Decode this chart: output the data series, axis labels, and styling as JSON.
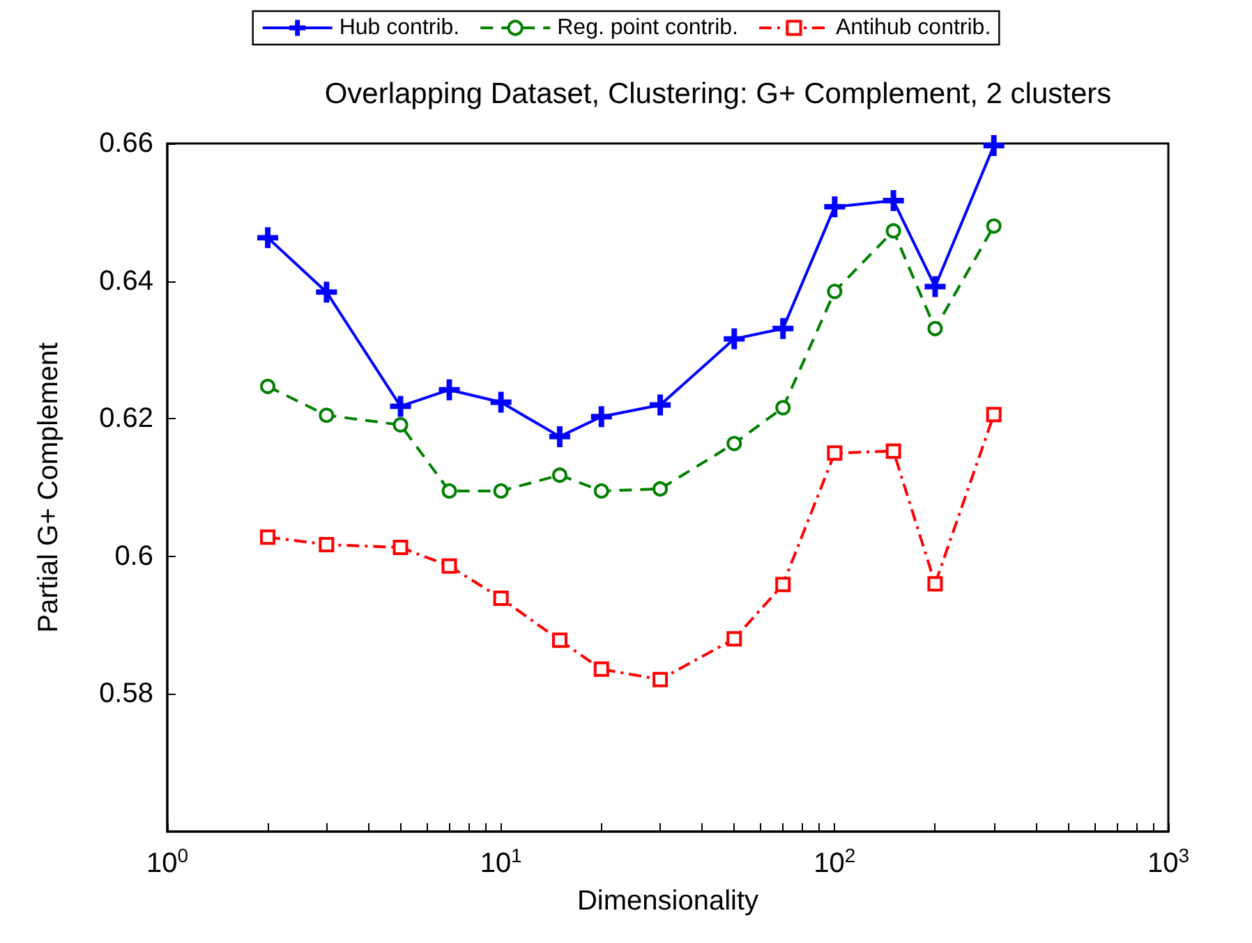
{
  "chart_data": {
    "type": "line",
    "title": "Overlapping Dataset, Clustering: G+ Complement, 2 clusters",
    "xlabel": "Dimensionality",
    "ylabel": "Partial G+ Complement",
    "x": [
      2,
      3,
      5,
      7,
      10,
      15,
      20,
      30,
      50,
      70,
      100,
      150,
      200,
      300
    ],
    "series": [
      {
        "name": "Hub contrib.",
        "color": "#0000ff",
        "marker": "cross",
        "line_style": "solid",
        "values": [
          0.6463,
          0.6384,
          0.6218,
          0.6242,
          0.6224,
          0.6174,
          0.6203,
          0.622,
          0.6316,
          0.6331,
          0.6508,
          0.6517,
          0.6392,
          0.6597
        ]
      },
      {
        "name": "Reg. point contrib.",
        "color": "#008000",
        "marker": "circle",
        "line_style": "dashed",
        "values": [
          0.6247,
          0.6205,
          0.6191,
          0.6095,
          0.6095,
          0.6118,
          0.6095,
          0.6098,
          0.6164,
          0.6216,
          0.6385,
          0.6473,
          0.6331,
          0.648
        ]
      },
      {
        "name": "Antihub contrib.",
        "color": "#ff0000",
        "marker": "square",
        "line_style": "dashdot",
        "values": [
          0.6028,
          0.6017,
          0.6013,
          0.5986,
          0.5939,
          0.5878,
          0.5836,
          0.5821,
          0.588,
          0.5959,
          0.615,
          0.6153,
          0.596,
          0.6206
        ]
      }
    ],
    "log": "x",
    "xlim": [
      1,
      1000
    ],
    "xticks": [
      {
        "value": 1,
        "label": "10$^{0}$"
      },
      {
        "value": 10,
        "label": "10$^{1}$"
      },
      {
        "value": 100,
        "label": "10$^{2}$"
      },
      {
        "value": 1000,
        "label": "10$^{3}$"
      }
    ],
    "ylim": [
      0.56,
      0.66
    ],
    "yticks": [
      0.58,
      0.6,
      0.62,
      0.64,
      0.66
    ],
    "grid": false,
    "legend": "top"
  }
}
